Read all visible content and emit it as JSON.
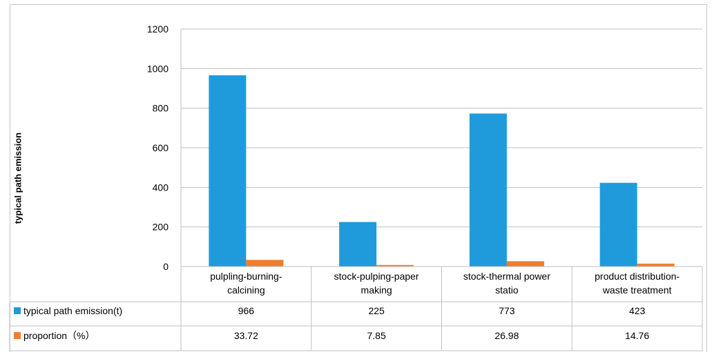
{
  "chart_data": {
    "type": "bar",
    "ylabel": "typical path emission",
    "xlabel": "",
    "ylim": [
      0,
      1200
    ],
    "yticks": [
      "0",
      "200",
      "400",
      "600",
      "800",
      "1000",
      "1200"
    ],
    "categories": [
      [
        "pulpling-burning-",
        "calcining"
      ],
      [
        "stock-pulping-paper",
        "making"
      ],
      [
        "stock-thermal power",
        "statio"
      ],
      [
        "product distribution-",
        "waste treatment"
      ]
    ],
    "series": [
      {
        "name": "typical path emission(t)",
        "color": "#1f9bdb",
        "values": [
          966,
          225,
          773,
          423
        ],
        "labels": [
          "966",
          "225",
          "773",
          "423"
        ]
      },
      {
        "name": "proportion（%）",
        "color": "#f07d2a",
        "values": [
          33.72,
          7.85,
          26.98,
          14.76
        ],
        "labels": [
          "33.72",
          "7.85",
          "26.98",
          "14.76"
        ]
      }
    ],
    "grid": true,
    "data_table": true
  }
}
